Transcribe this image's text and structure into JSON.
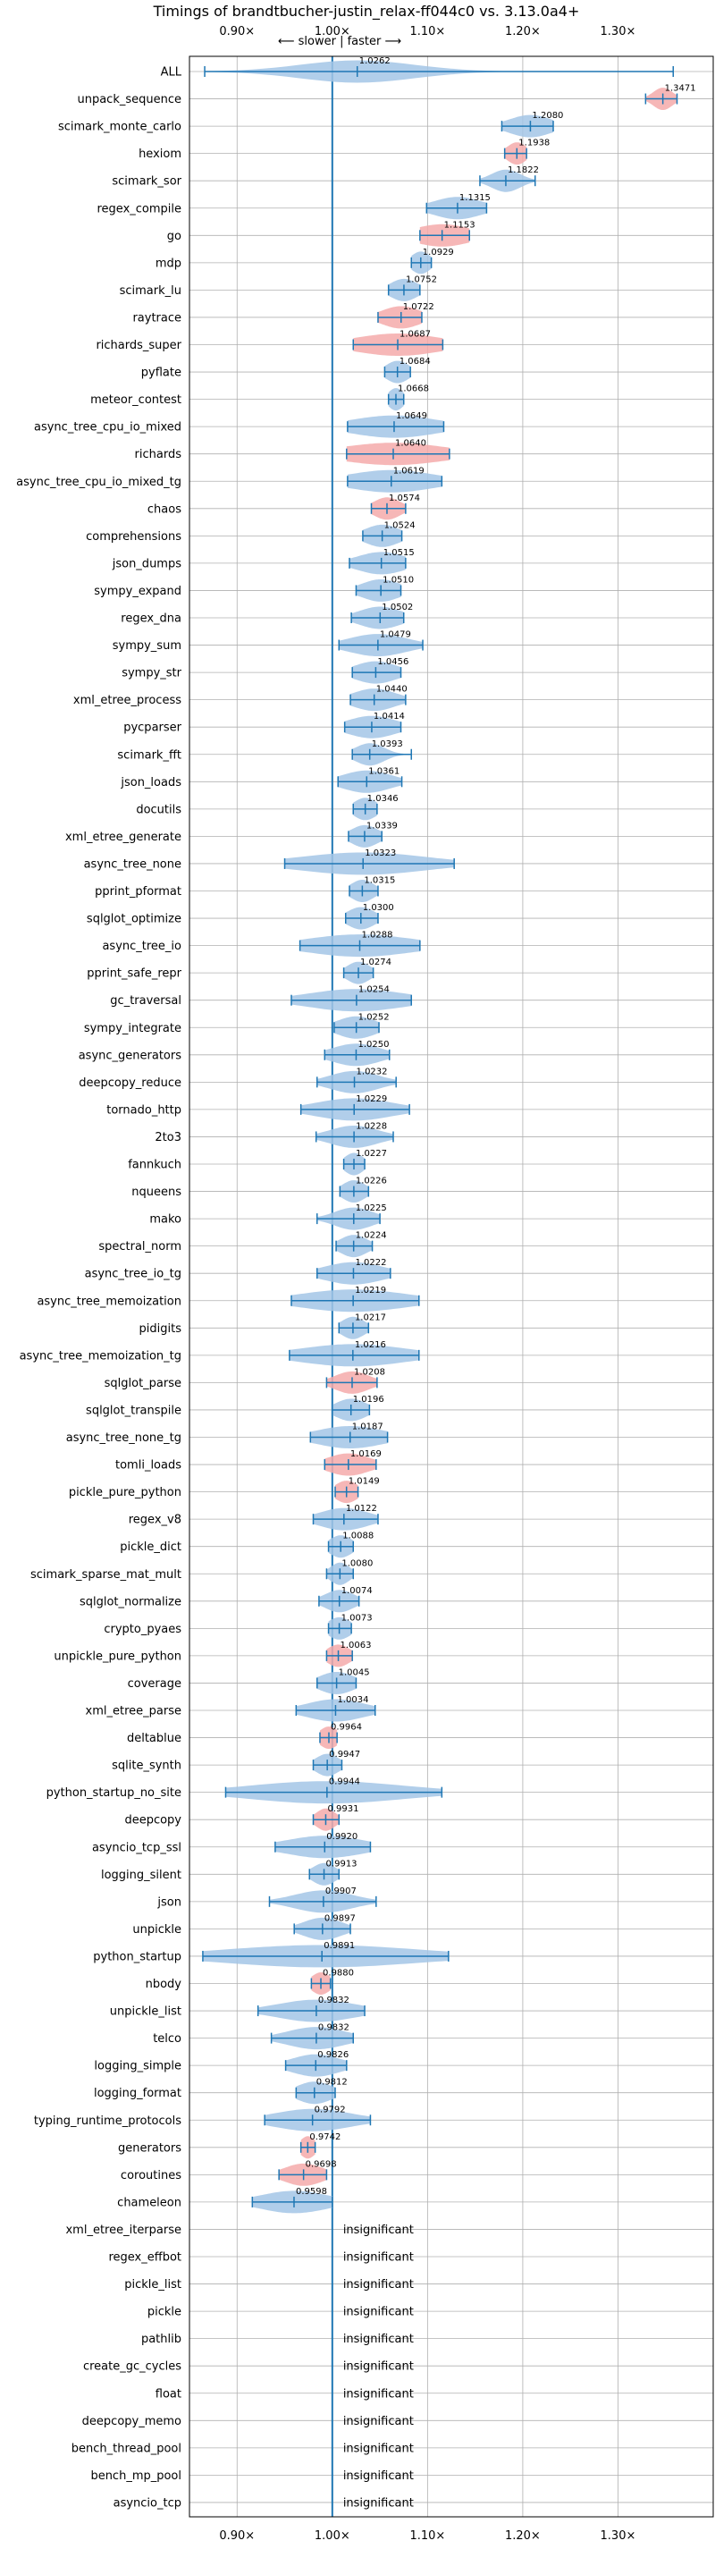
{
  "chart_data": {
    "type": "violin",
    "title": "Timings of brandtbucher-justin_relax-ff044c0 vs. 3.13.0a4+",
    "direction_note": "⟵ slower | faster ⟶",
    "xlim": [
      0.85,
      1.4
    ],
    "xticks": [
      0.9,
      1.0,
      1.1,
      1.2,
      1.3
    ],
    "xtick_labels": [
      "0.90×",
      "1.00×",
      "1.10×",
      "1.20×",
      "1.30×"
    ],
    "insignificant_label": "insignificant",
    "colors": {
      "faster": "#a3c6e6",
      "slower": "#f4aaaa",
      "line": "#1f77b4",
      "grid": "#b0b0b0"
    },
    "benchmarks": [
      {
        "name": "ALL",
        "value": 1.0262,
        "label": "1.0262",
        "lo": 0.866,
        "hi": 1.358,
        "spread": 0.06,
        "kind": "faster"
      },
      {
        "name": "unpack_sequence",
        "value": 1.3471,
        "label": "1.3471",
        "lo": 1.329,
        "hi": 1.362,
        "spread": 0.01,
        "kind": "slower"
      },
      {
        "name": "scimark_monte_carlo",
        "value": 1.208,
        "label": "1.2080",
        "lo": 1.178,
        "hi": 1.232,
        "spread": 0.022,
        "kind": "faster"
      },
      {
        "name": "hexiom",
        "value": 1.1938,
        "label": "1.1938",
        "lo": 1.181,
        "hi": 1.204,
        "spread": 0.01,
        "kind": "slower"
      },
      {
        "name": "scimark_sor",
        "value": 1.1822,
        "label": "1.1822",
        "lo": 1.155,
        "hi": 1.213,
        "spread": 0.015,
        "kind": "faster"
      },
      {
        "name": "regex_compile",
        "value": 1.1315,
        "label": "1.1315",
        "lo": 1.099,
        "hi": 1.162,
        "spread": 0.025,
        "kind": "faster"
      },
      {
        "name": "go",
        "value": 1.1153,
        "label": "1.1153",
        "lo": 1.092,
        "hi": 1.144,
        "spread": 0.03,
        "kind": "slower"
      },
      {
        "name": "mdp",
        "value": 1.0929,
        "label": "1.0929",
        "lo": 1.083,
        "hi": 1.104,
        "spread": 0.01,
        "kind": "faster"
      },
      {
        "name": "scimark_lu",
        "value": 1.0752,
        "label": "1.0752",
        "lo": 1.059,
        "hi": 1.092,
        "spread": 0.014,
        "kind": "faster"
      },
      {
        "name": "raytrace",
        "value": 1.0722,
        "label": "1.0722",
        "lo": 1.048,
        "hi": 1.094,
        "spread": 0.02,
        "kind": "slower"
      },
      {
        "name": "richards_super",
        "value": 1.0687,
        "label": "1.0687",
        "lo": 1.022,
        "hi": 1.116,
        "spread": 0.045,
        "kind": "slower"
      },
      {
        "name": "pyflate",
        "value": 1.0684,
        "label": "1.0684",
        "lo": 1.055,
        "hi": 1.082,
        "spread": 0.012,
        "kind": "faster"
      },
      {
        "name": "meteor_contest",
        "value": 1.0668,
        "label": "1.0668",
        "lo": 1.059,
        "hi": 1.075,
        "spread": 0.008,
        "kind": "faster"
      },
      {
        "name": "async_tree_cpu_io_mixed",
        "value": 1.0649,
        "label": "1.0649",
        "lo": 1.016,
        "hi": 1.117,
        "spread": 0.045,
        "kind": "faster"
      },
      {
        "name": "richards",
        "value": 1.064,
        "label": "1.0640",
        "lo": 1.015,
        "hi": 1.123,
        "spread": 0.055,
        "kind": "slower"
      },
      {
        "name": "async_tree_cpu_io_mixed_tg",
        "value": 1.0619,
        "label": "1.0619",
        "lo": 1.016,
        "hi": 1.115,
        "spread": 0.045,
        "kind": "faster"
      },
      {
        "name": "chaos",
        "value": 1.0574,
        "label": "1.0574",
        "lo": 1.041,
        "hi": 1.077,
        "spread": 0.014,
        "kind": "slower"
      },
      {
        "name": "comprehensions",
        "value": 1.0524,
        "label": "1.0524",
        "lo": 1.032,
        "hi": 1.073,
        "spread": 0.018,
        "kind": "faster"
      },
      {
        "name": "json_dumps",
        "value": 1.0515,
        "label": "1.0515",
        "lo": 1.018,
        "hi": 1.077,
        "spread": 0.025,
        "kind": "faster"
      },
      {
        "name": "sympy_expand",
        "value": 1.051,
        "label": "1.0510",
        "lo": 1.025,
        "hi": 1.072,
        "spread": 0.02,
        "kind": "faster"
      },
      {
        "name": "regex_dna",
        "value": 1.0502,
        "label": "1.0502",
        "lo": 1.02,
        "hi": 1.075,
        "spread": 0.022,
        "kind": "faster"
      },
      {
        "name": "sympy_sum",
        "value": 1.0479,
        "label": "1.0479",
        "lo": 1.007,
        "hi": 1.095,
        "spread": 0.03,
        "kind": "faster"
      },
      {
        "name": "sympy_str",
        "value": 1.0456,
        "label": "1.0456",
        "lo": 1.021,
        "hi": 1.072,
        "spread": 0.022,
        "kind": "faster"
      },
      {
        "name": "xml_etree_process",
        "value": 1.044,
        "label": "1.0440",
        "lo": 1.019,
        "hi": 1.077,
        "spread": 0.022,
        "kind": "faster"
      },
      {
        "name": "pycparser",
        "value": 1.0414,
        "label": "1.0414",
        "lo": 1.013,
        "hi": 1.072,
        "spread": 0.025,
        "kind": "faster"
      },
      {
        "name": "scimark_fft",
        "value": 1.0393,
        "label": "1.0393",
        "lo": 1.021,
        "hi": 1.083,
        "spread": 0.015,
        "kind": "faster"
      },
      {
        "name": "json_loads",
        "value": 1.0361,
        "label": "1.0361",
        "lo": 1.006,
        "hi": 1.073,
        "spread": 0.025,
        "kind": "faster"
      },
      {
        "name": "docutils",
        "value": 1.0346,
        "label": "1.0346",
        "lo": 1.022,
        "hi": 1.047,
        "spread": 0.012,
        "kind": "faster"
      },
      {
        "name": "xml_etree_generate",
        "value": 1.0339,
        "label": "1.0339",
        "lo": 1.017,
        "hi": 1.052,
        "spread": 0.014,
        "kind": "faster"
      },
      {
        "name": "async_tree_none",
        "value": 1.0323,
        "label": "1.0323",
        "lo": 0.95,
        "hi": 1.128,
        "spread": 0.065,
        "kind": "faster"
      },
      {
        "name": "pprint_pformat",
        "value": 1.0315,
        "label": "1.0315",
        "lo": 1.018,
        "hi": 1.048,
        "spread": 0.012,
        "kind": "faster"
      },
      {
        "name": "sqlglot_optimize",
        "value": 1.03,
        "label": "1.0300",
        "lo": 1.014,
        "hi": 1.048,
        "spread": 0.014,
        "kind": "faster"
      },
      {
        "name": "async_tree_io",
        "value": 1.0288,
        "label": "1.0288",
        "lo": 0.966,
        "hi": 1.092,
        "spread": 0.055,
        "kind": "faster"
      },
      {
        "name": "pprint_safe_repr",
        "value": 1.0274,
        "label": "1.0274",
        "lo": 1.012,
        "hi": 1.043,
        "spread": 0.012,
        "kind": "faster"
      },
      {
        "name": "gc_traversal",
        "value": 1.0254,
        "label": "1.0254",
        "lo": 0.957,
        "hi": 1.083,
        "spread": 0.05,
        "kind": "faster"
      },
      {
        "name": "sympy_integrate",
        "value": 1.0252,
        "label": "1.0252",
        "lo": 1.002,
        "hi": 1.049,
        "spread": 0.02,
        "kind": "faster"
      },
      {
        "name": "async_generators",
        "value": 1.025,
        "label": "1.0250",
        "lo": 0.992,
        "hi": 1.06,
        "spread": 0.025,
        "kind": "faster"
      },
      {
        "name": "deepcopy_reduce",
        "value": 1.0232,
        "label": "1.0232",
        "lo": 0.984,
        "hi": 1.067,
        "spread": 0.025,
        "kind": "faster"
      },
      {
        "name": "tornado_http",
        "value": 1.0229,
        "label": "1.0229",
        "lo": 0.967,
        "hi": 1.081,
        "spread": 0.04,
        "kind": "faster"
      },
      {
        "name": "2to3",
        "value": 1.0228,
        "label": "1.0228",
        "lo": 0.983,
        "hi": 1.064,
        "spread": 0.025,
        "kind": "faster"
      },
      {
        "name": "fannkuch",
        "value": 1.0227,
        "label": "1.0227",
        "lo": 1.012,
        "hi": 1.034,
        "spread": 0.01,
        "kind": "faster"
      },
      {
        "name": "nqueens",
        "value": 1.0226,
        "label": "1.0226",
        "lo": 1.008,
        "hi": 1.038,
        "spread": 0.012,
        "kind": "faster"
      },
      {
        "name": "mako",
        "value": 1.0225,
        "label": "1.0225",
        "lo": 0.984,
        "hi": 1.05,
        "spread": 0.02,
        "kind": "faster"
      },
      {
        "name": "spectral_norm",
        "value": 1.0224,
        "label": "1.0224",
        "lo": 1.004,
        "hi": 1.042,
        "spread": 0.014,
        "kind": "faster"
      },
      {
        "name": "async_tree_io_tg",
        "value": 1.0222,
        "label": "1.0222",
        "lo": 0.984,
        "hi": 1.061,
        "spread": 0.03,
        "kind": "faster"
      },
      {
        "name": "async_tree_memoization",
        "value": 1.0219,
        "label": "1.0219",
        "lo": 0.957,
        "hi": 1.091,
        "spread": 0.055,
        "kind": "faster"
      },
      {
        "name": "pidigits",
        "value": 1.0217,
        "label": "1.0217",
        "lo": 1.007,
        "hi": 1.038,
        "spread": 0.012,
        "kind": "faster"
      },
      {
        "name": "async_tree_memoization_tg",
        "value": 1.0216,
        "label": "1.0216",
        "lo": 0.955,
        "hi": 1.091,
        "spread": 0.055,
        "kind": "faster"
      },
      {
        "name": "sqlglot_parse",
        "value": 1.0208,
        "label": "1.0208",
        "lo": 0.994,
        "hi": 1.047,
        "spread": 0.018,
        "kind": "slower"
      },
      {
        "name": "sqlglot_transpile",
        "value": 1.0196,
        "label": "1.0196",
        "lo": 1.0,
        "hi": 1.039,
        "spread": 0.016,
        "kind": "faster"
      },
      {
        "name": "async_tree_none_tg",
        "value": 1.0187,
        "label": "1.0187",
        "lo": 0.977,
        "hi": 1.058,
        "spread": 0.035,
        "kind": "faster"
      },
      {
        "name": "tomli_loads",
        "value": 1.0169,
        "label": "1.0169",
        "lo": 0.992,
        "hi": 1.046,
        "spread": 0.022,
        "kind": "slower"
      },
      {
        "name": "pickle_pure_python",
        "value": 1.0149,
        "label": "1.0149",
        "lo": 1.003,
        "hi": 1.027,
        "spread": 0.012,
        "kind": "slower"
      },
      {
        "name": "regex_v8",
        "value": 1.0122,
        "label": "1.0122",
        "lo": 0.98,
        "hi": 1.048,
        "spread": 0.025,
        "kind": "faster"
      },
      {
        "name": "pickle_dict",
        "value": 1.0088,
        "label": "1.0088",
        "lo": 0.996,
        "hi": 1.022,
        "spread": 0.012,
        "kind": "faster"
      },
      {
        "name": "scimark_sparse_mat_mult",
        "value": 1.008,
        "label": "1.0080",
        "lo": 0.994,
        "hi": 1.022,
        "spread": 0.01,
        "kind": "faster"
      },
      {
        "name": "sqlglot_normalize",
        "value": 1.0074,
        "label": "1.0074",
        "lo": 0.986,
        "hi": 1.028,
        "spread": 0.015,
        "kind": "faster"
      },
      {
        "name": "crypto_pyaes",
        "value": 1.0073,
        "label": "1.0073",
        "lo": 0.996,
        "hi": 1.02,
        "spread": 0.012,
        "kind": "faster"
      },
      {
        "name": "unpickle_pure_python",
        "value": 1.0063,
        "label": "1.0063",
        "lo": 0.994,
        "hi": 1.021,
        "spread": 0.012,
        "kind": "slower"
      },
      {
        "name": "coverage",
        "value": 1.0045,
        "label": "1.0045",
        "lo": 0.984,
        "hi": 1.025,
        "spread": 0.018,
        "kind": "faster"
      },
      {
        "name": "xml_etree_parse",
        "value": 1.0034,
        "label": "1.0034",
        "lo": 0.962,
        "hi": 1.045,
        "spread": 0.03,
        "kind": "faster"
      },
      {
        "name": "deltablue",
        "value": 0.9964,
        "label": "0.9964",
        "lo": 0.987,
        "hi": 1.005,
        "spread": 0.01,
        "kind": "slower"
      },
      {
        "name": "sqlite_synth",
        "value": 0.9947,
        "label": "0.9947",
        "lo": 0.98,
        "hi": 1.01,
        "spread": 0.012,
        "kind": "faster"
      },
      {
        "name": "python_startup_no_site",
        "value": 0.9944,
        "label": "0.9944",
        "lo": 0.888,
        "hi": 1.115,
        "spread": 0.08,
        "kind": "faster"
      },
      {
        "name": "deepcopy",
        "value": 0.9931,
        "label": "0.9931",
        "lo": 0.98,
        "hi": 1.007,
        "spread": 0.01,
        "kind": "slower"
      },
      {
        "name": "asyncio_tcp_ssl",
        "value": 0.992,
        "label": "0.9920",
        "lo": 0.94,
        "hi": 1.04,
        "spread": 0.04,
        "kind": "faster"
      },
      {
        "name": "logging_silent",
        "value": 0.9913,
        "label": "0.9913",
        "lo": 0.976,
        "hi": 1.007,
        "spread": 0.012,
        "kind": "faster"
      },
      {
        "name": "json",
        "value": 0.9907,
        "label": "0.9907",
        "lo": 0.934,
        "hi": 1.046,
        "spread": 0.03,
        "kind": "faster"
      },
      {
        "name": "unpickle",
        "value": 0.9897,
        "label": "0.9897",
        "lo": 0.96,
        "hi": 1.019,
        "spread": 0.02,
        "kind": "faster"
      },
      {
        "name": "python_startup",
        "value": 0.9891,
        "label": "0.9891",
        "lo": 0.864,
        "hi": 1.122,
        "spread": 0.1,
        "kind": "faster"
      },
      {
        "name": "nbody",
        "value": 0.988,
        "label": "0.9880",
        "lo": 0.978,
        "hi": 0.998,
        "spread": 0.01,
        "kind": "slower"
      },
      {
        "name": "unpickle_list",
        "value": 0.9832,
        "label": "0.9832",
        "lo": 0.922,
        "hi": 1.034,
        "spread": 0.04,
        "kind": "faster"
      },
      {
        "name": "telco",
        "value": 0.9832,
        "label": "0.9832",
        "lo": 0.936,
        "hi": 1.022,
        "spread": 0.03,
        "kind": "faster"
      },
      {
        "name": "logging_simple",
        "value": 0.9826,
        "label": "0.9826",
        "lo": 0.951,
        "hi": 1.015,
        "spread": 0.025,
        "kind": "faster"
      },
      {
        "name": "logging_format",
        "value": 0.9812,
        "label": "0.9812",
        "lo": 0.962,
        "hi": 1.003,
        "spread": 0.018,
        "kind": "faster"
      },
      {
        "name": "typing_runtime_protocols",
        "value": 0.9792,
        "label": "0.9792",
        "lo": 0.929,
        "hi": 1.04,
        "spread": 0.04,
        "kind": "faster"
      },
      {
        "name": "generators",
        "value": 0.9742,
        "label": "0.9742",
        "lo": 0.967,
        "hi": 0.982,
        "spread": 0.008,
        "kind": "slower"
      },
      {
        "name": "coroutines",
        "value": 0.9698,
        "label": "0.9698",
        "lo": 0.944,
        "hi": 0.994,
        "spread": 0.02,
        "kind": "slower"
      },
      {
        "name": "chameleon",
        "value": 0.9598,
        "label": "0.9598",
        "lo": 0.916,
        "hi": 1.0,
        "spread": 0.035,
        "kind": "faster"
      },
      {
        "name": "xml_etree_iterparse",
        "value": null,
        "kind": "insignificant"
      },
      {
        "name": "regex_effbot",
        "value": null,
        "kind": "insignificant"
      },
      {
        "name": "pickle_list",
        "value": null,
        "kind": "insignificant"
      },
      {
        "name": "pickle",
        "value": null,
        "kind": "insignificant"
      },
      {
        "name": "pathlib",
        "value": null,
        "kind": "insignificant"
      },
      {
        "name": "create_gc_cycles",
        "value": null,
        "kind": "insignificant"
      },
      {
        "name": "float",
        "value": null,
        "kind": "insignificant"
      },
      {
        "name": "deepcopy_memo",
        "value": null,
        "kind": "insignificant"
      },
      {
        "name": "bench_thread_pool",
        "value": null,
        "kind": "insignificant"
      },
      {
        "name": "bench_mp_pool",
        "value": null,
        "kind": "insignificant"
      },
      {
        "name": "asyncio_tcp",
        "value": null,
        "kind": "insignificant"
      }
    ]
  }
}
